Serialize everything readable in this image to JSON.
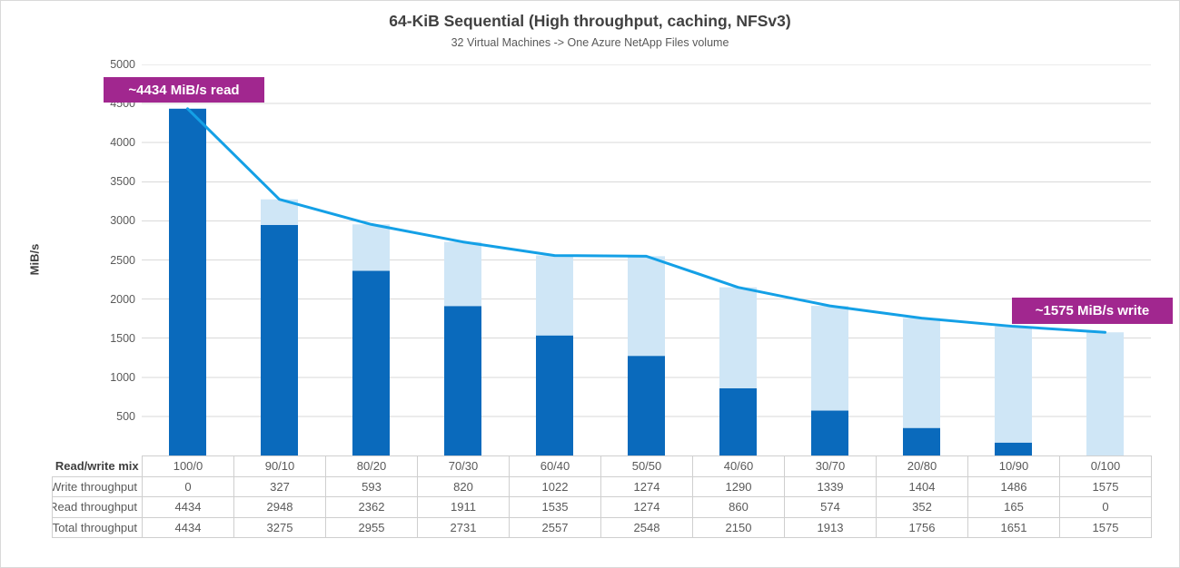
{
  "chart": {
    "title": "64-KiB Sequential (High throughput, caching, NFSv3)",
    "subtitle": "32 Virtual Machines -> One Azure NetApp Files volume",
    "y_axis_label": "MiB/s"
  },
  "annotations": {
    "read_peak": "~4434 MiB/s read",
    "write_peak": "~1575 MiB/s write"
  },
  "table": {
    "category_header": "Read/write mix"
  },
  "colors": {
    "accent_callout": "#a1278f",
    "write_bar": "#cfe6f6",
    "read_bar": "#0a6abc",
    "total_line": "#14a0e6",
    "gridline": "#d9d9d9",
    "text_dark": "#404040",
    "text_gray": "#595959"
  },
  "chart_data": {
    "type": "bar",
    "subtype": "stacked-bars-with-line-overlay",
    "title": "64-KiB Sequential (High throughput, caching, NFSv3)",
    "xlabel": "Read/write mix",
    "ylabel": "MiB/s",
    "ylim": [
      0,
      5000
    ],
    "ytick_step": 500,
    "yticks": [
      5000,
      4500,
      4000,
      3500,
      3000,
      2500,
      2000,
      1500,
      1000,
      500
    ],
    "grid": "horizontal",
    "legend_position": "data-table-left-column",
    "categories": [
      "100/0",
      "90/10",
      "80/20",
      "70/30",
      "60/40",
      "50/50",
      "40/60",
      "30/70",
      "20/80",
      "10/90",
      "0/100"
    ],
    "series": [
      {
        "name": "Write throughput",
        "render": "stacked-bar-top",
        "color": "#cfe6f6",
        "values": [
          0,
          327,
          593,
          820,
          1022,
          1274,
          1290,
          1339,
          1404,
          1486,
          1575
        ]
      },
      {
        "name": "Read throughput",
        "render": "stacked-bar-bottom",
        "color": "#0a6abc",
        "values": [
          4434,
          2948,
          2362,
          1911,
          1535,
          1274,
          860,
          574,
          352,
          165,
          0
        ]
      },
      {
        "name": "Total throughput",
        "render": "line",
        "color": "#14a0e6",
        "values": [
          4434,
          3275,
          2955,
          2731,
          2557,
          2548,
          2150,
          1913,
          1756,
          1651,
          1575
        ]
      }
    ]
  }
}
